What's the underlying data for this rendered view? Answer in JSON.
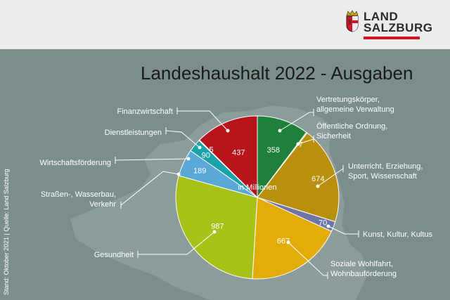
{
  "brand": {
    "line1": "LAND",
    "line2": "SALZBURG"
  },
  "side_note": "Stand: Oktober 2021 | Quelle: Land Salzburg",
  "colors": {
    "header_bg": "#ececec",
    "body_bg": "#7a8f8c",
    "map_fill": "#8e9d9b",
    "brand_red": "#d0152a"
  },
  "chart_data": {
    "type": "pie",
    "title": "Landeshaushalt 2022 - Ausgaben",
    "unit_note": "in Millionen",
    "slices": [
      {
        "label": "Vertretungskörper,\nallgemeine Verwaltung",
        "value": 358,
        "color": "#1f7f3b"
      },
      {
        "label": "Öffentliche Ordnung,\nSicherheit",
        "value": 7,
        "color": "#5d9a38"
      },
      {
        "label": "Unterricht, Erziehung,\nSport, Wissenschaft",
        "value": 674,
        "color": "#b8900d"
      },
      {
        "label": "Kunst, Kultur, Kultus",
        "value": 70,
        "color": "#6d74a8"
      },
      {
        "label": "Soziale Wohlfahrt,\nWohnbauförderung",
        "value": 667,
        "color": "#e2ad08"
      },
      {
        "label": "Gesundheit",
        "value": 987,
        "color": "#a9c21a"
      },
      {
        "label": "Straßen-, Wasserbau,\nVerkehr",
        "value": 189,
        "color": "#5aa8d8"
      },
      {
        "label": "Wirtschaftsförderung",
        "value": 90,
        "color": "#1aa3a8"
      },
      {
        "label": "Dienstleistungen",
        "value": 5,
        "color": "#3a8fc0"
      },
      {
        "label": "Finanzwirtschaft",
        "value": 437,
        "color": "#b8141c"
      }
    ]
  }
}
